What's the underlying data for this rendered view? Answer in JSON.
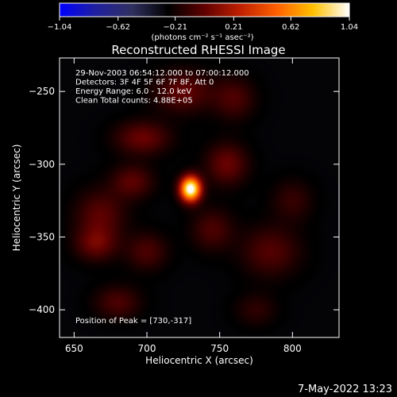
{
  "chart_data": {
    "type": "heatmap",
    "title": "Reconstructed RHESSI Image",
    "xlabel": "Heliocentric X (arcsec)",
    "ylabel": "Heliocentric Y (arcsec)",
    "xlim": [
      640,
      832
    ],
    "ylim": [
      -419,
      -227
    ],
    "x_ticks": [
      650,
      700,
      750,
      800
    ],
    "y_ticks": [
      -400,
      -350,
      -300,
      -250
    ],
    "colorbar": {
      "range": [
        -1.04,
        1.04
      ],
      "ticks": [
        -1.04,
        -0.62,
        -0.21,
        0.21,
        0.62,
        1.04
      ],
      "tick_labels": [
        "−1.04",
        "−0.62",
        "−0.21",
        "0.21",
        "0.62",
        "1.04"
      ],
      "unit_label": "(photons cm⁻² s⁻¹ asec⁻²)",
      "colormap": [
        "#0000ff",
        "#2020a0",
        "#303060",
        "#000000",
        "#600000",
        "#c02000",
        "#ff6000",
        "#ffc000",
        "#ffffff"
      ]
    },
    "annotations": [
      "29-Nov-2003 06:54:12.000 to 07:00:12.000",
      "Detectors: 3F 4F 5F 6F 7F 8F, Att 0",
      "Energy Range: 6.0 - 12.0 keV",
      "Clean    Total counts: 4.88E+05"
    ],
    "peak_label": "Position of Peak = [730,-317]",
    "peak": {
      "x": 730,
      "y": -317,
      "value": 1.04
    },
    "background_level": -0.28,
    "features": [
      {
        "x": 730,
        "y": -317,
        "sx": 5,
        "sy": 6,
        "amp": 1.4
      },
      {
        "x": 697,
        "y": -282,
        "sx": 13,
        "sy": 8,
        "amp": 0.3
      },
      {
        "x": 690,
        "y": -312,
        "sx": 10,
        "sy": 8,
        "amp": 0.26
      },
      {
        "x": 668,
        "y": -335,
        "sx": 12,
        "sy": 12,
        "amp": 0.26
      },
      {
        "x": 665,
        "y": -355,
        "sx": 10,
        "sy": 8,
        "amp": 0.28
      },
      {
        "x": 680,
        "y": -395,
        "sx": 11,
        "sy": 8,
        "amp": 0.22
      },
      {
        "x": 700,
        "y": -360,
        "sx": 10,
        "sy": 9,
        "amp": 0.22
      },
      {
        "x": 725,
        "y": -250,
        "sx": 14,
        "sy": 10,
        "amp": 0.28
      },
      {
        "x": 760,
        "y": -255,
        "sx": 10,
        "sy": 10,
        "amp": 0.22
      },
      {
        "x": 755,
        "y": -300,
        "sx": 10,
        "sy": 10,
        "amp": 0.3
      },
      {
        "x": 745,
        "y": -345,
        "sx": 10,
        "sy": 10,
        "amp": 0.22
      },
      {
        "x": 785,
        "y": -360,
        "sx": 14,
        "sy": 12,
        "amp": 0.24
      },
      {
        "x": 800,
        "y": -325,
        "sx": 10,
        "sy": 10,
        "amp": 0.16
      },
      {
        "x": 775,
        "y": -400,
        "sx": 10,
        "sy": 8,
        "amp": 0.14
      }
    ]
  },
  "footer": {
    "date": "7-May-2022 13:23"
  }
}
